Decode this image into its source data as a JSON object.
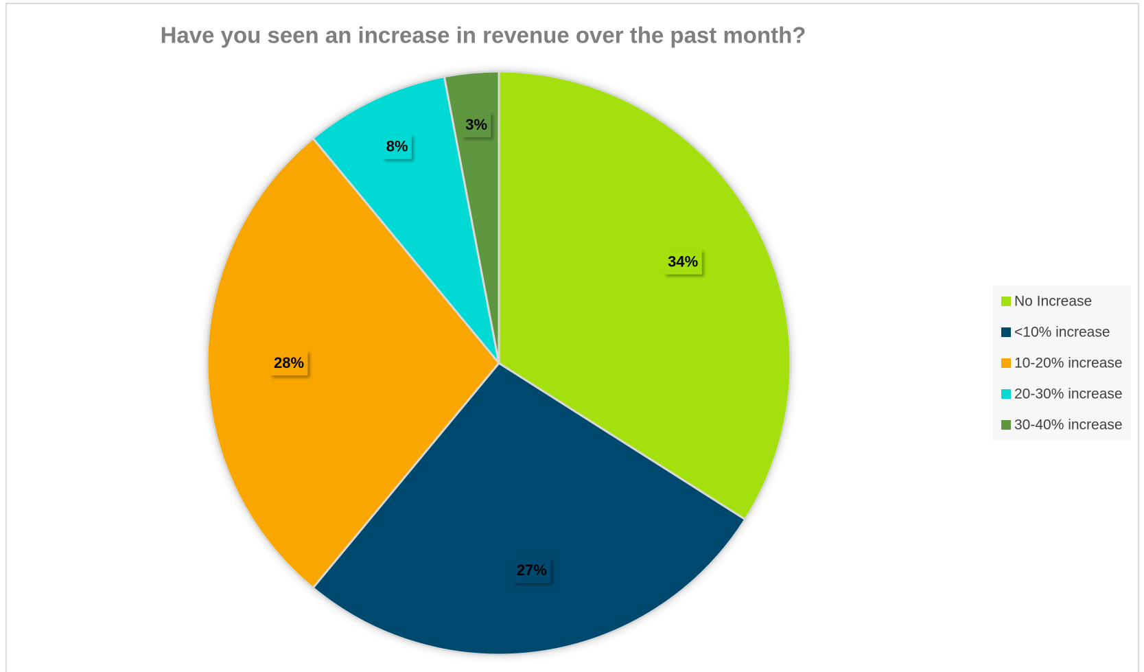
{
  "chart_data": {
    "type": "pie",
    "title": "Have you seen an increase in revenue over the past month?",
    "categories": [
      "No Increase",
      "<10% increase",
      "10-20% increase",
      "20-30% increase",
      "30-40% increase"
    ],
    "values": [
      34,
      27,
      28,
      8,
      3
    ],
    "value_labels": [
      "34%",
      "27%",
      "28%",
      "8%",
      "3%"
    ],
    "colors": [
      "#a3e011",
      "#004a6e",
      "#f9a602",
      "#06d9d4",
      "#5e9640"
    ],
    "legend": "right"
  }
}
